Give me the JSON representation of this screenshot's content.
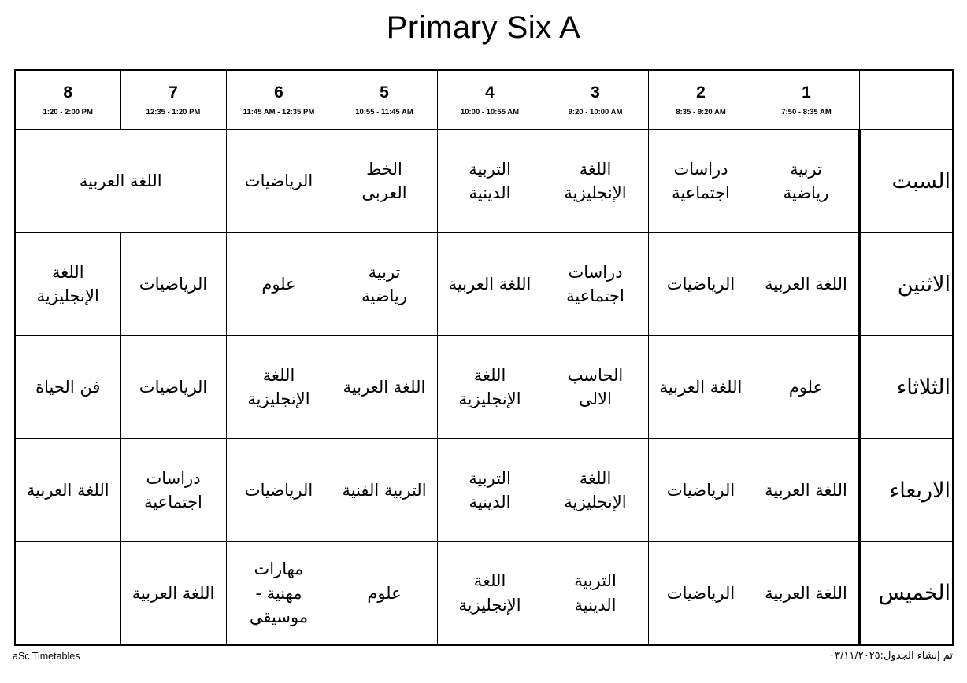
{
  "title": "Primary Six A",
  "header": {
    "periods": [
      {
        "number": "1",
        "time": "7:50 - 8:35 AM"
      },
      {
        "number": "2",
        "time": "8:35 - 9:20 AM"
      },
      {
        "number": "3",
        "time": "9:20 - 10:00 AM"
      },
      {
        "number": "4",
        "time": "10:00 - 10:55 AM"
      },
      {
        "number": "5",
        "time": "10:55 - 11:45 AM"
      },
      {
        "number": "6",
        "time": "11:45 AM - 12:35 PM"
      },
      {
        "number": "7",
        "time": "12:35 - 1:20 PM"
      },
      {
        "number": "8",
        "time": "1:20 - 2:00 PM"
      }
    ]
  },
  "days": [
    {
      "name": "السبت",
      "lessons": [
        "تربية\nرياضية",
        "دراسات\nاجتماعية",
        "اللغة\nالإنجليزية",
        "التربية\nالدينية",
        "الخط\nالعربى",
        "الرياضيات",
        "اللغة العربية"
      ]
    },
    {
      "name": "الاثنين",
      "lessons": [
        "اللغة العربية",
        "الرياضيات",
        "دراسات\nاجتماعية",
        "اللغة العربية",
        "تربية\nرياضية",
        "علوم",
        "الرياضيات",
        "اللغة\nالإنجليزية"
      ]
    },
    {
      "name": "الثلاثاء",
      "lessons": [
        "علوم",
        "اللغة العربية",
        "الحاسب\nالالى",
        "اللغة\nالإنجليزية",
        "اللغة العربية",
        "اللغة\nالإنجليزية",
        "الرياضيات",
        "فن الحياة"
      ]
    },
    {
      "name": "الاربعاء",
      "lessons": [
        "اللغة العربية",
        "الرياضيات",
        "اللغة\nالإنجليزية",
        "التربية\nالدينية",
        "التربية الفنية",
        "الرياضيات",
        "دراسات\nاجتماعية",
        "اللغة العربية"
      ]
    },
    {
      "name": "الخميس",
      "lessons": [
        "اللغة العربية",
        "الرياضيات",
        "التربية\nالدينية",
        "اللغة\nالإنجليزية",
        "علوم",
        "مهارات\nمهنية -\nموسيقي",
        "اللغة العربية",
        ""
      ]
    }
  ],
  "footer": {
    "left": "aSc Timetables",
    "right": "تم إنشاء الجدول:٠٣/١١/٢٠٢٥"
  }
}
